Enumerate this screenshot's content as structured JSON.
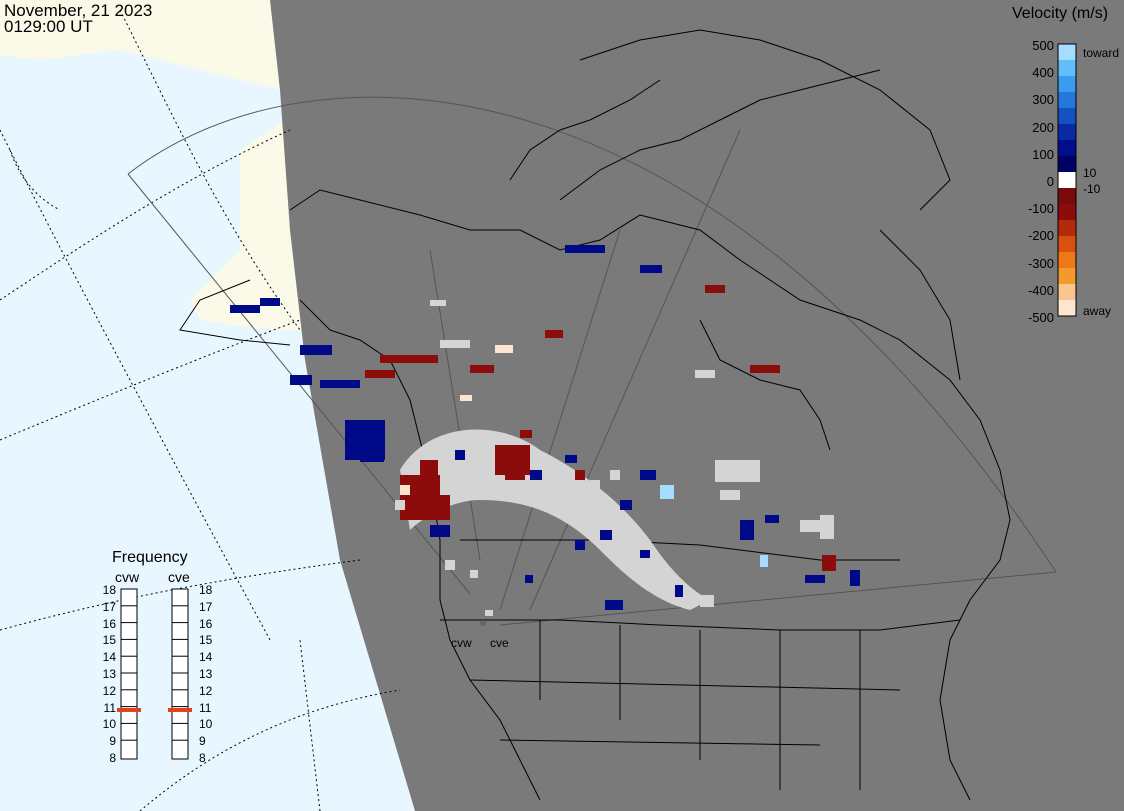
{
  "header": {
    "date": "November, 21 2023",
    "time": "0129:00 UT"
  },
  "legend": {
    "title": "Velocity (m/s)",
    "ticks": [
      "500",
      "400",
      "300",
      "200",
      "100",
      "0",
      "-100",
      "-200",
      "-300",
      "-400",
      "-500"
    ],
    "toward_label": "toward",
    "away_label": "away",
    "pos_small": "10",
    "neg_small": "-10",
    "colors": [
      "#fce6d0",
      "#fbc58f",
      "#f49a2c",
      "#ee7918",
      "#d9500f",
      "#b32a0c",
      "#8c0b0b",
      "#7a0a0a",
      "#ffffff",
      "#000066",
      "#000d8c",
      "#0a2aa3",
      "#1651c4",
      "#2478dc",
      "#3a9cf0",
      "#62bdfa",
      "#a6dcff"
    ]
  },
  "frequency": {
    "title": "Frequency",
    "radars": [
      "cvw",
      "cve"
    ],
    "scale": [
      "18",
      "17",
      "16",
      "15",
      "14",
      "13",
      "12",
      "11",
      "10",
      "9",
      "8"
    ],
    "current_mhz": [
      10.8,
      10.8
    ],
    "marker_color": "#e0401a"
  },
  "map": {
    "land_color": "#fbfae9",
    "ocean_color": "#e8f6ff",
    "night_color": "#7a7a7a",
    "groundscatter_color": "#d4d4d4",
    "site_labels": [
      "cvw",
      "cve"
    ]
  }
}
